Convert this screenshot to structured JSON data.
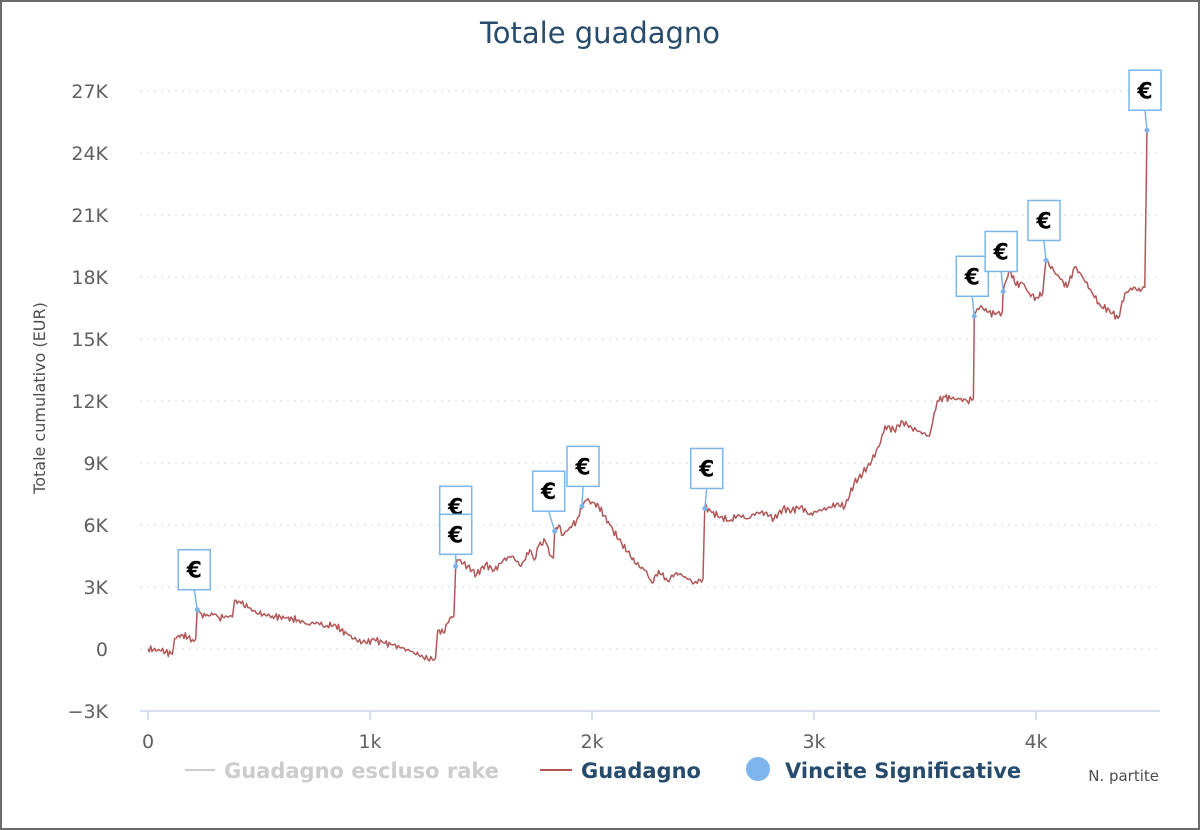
{
  "chart_data": {
    "type": "line",
    "title": "Totale guadagno",
    "ylabel": "Totale cumulativo (EUR)",
    "xlabel": "N. partite",
    "xlim": [
      -50,
      4550
    ],
    "ylim": [
      -3000,
      27000
    ],
    "yticks": [
      -3000,
      0,
      3000,
      6000,
      9000,
      12000,
      15000,
      18000,
      21000,
      24000,
      27000
    ],
    "ytick_labels": [
      "−3K",
      "0",
      "3K",
      "6K",
      "9K",
      "12K",
      "15K",
      "18K",
      "21K",
      "24K",
      "27K"
    ],
    "xticks": [
      0,
      1000,
      2000,
      3000,
      4000
    ],
    "xtick_labels": [
      "0",
      "1k",
      "2k",
      "3k",
      "4k"
    ],
    "grid": "horizontal dotted",
    "legend_position": "bottom",
    "colors": {
      "guadagno": "#b25757",
      "escluso_rake": "#cccccc",
      "vincite": "#7cb5ec",
      "title": "#274b6d"
    },
    "series": [
      {
        "name": "Guadagno escluso rake",
        "hidden": true,
        "points": []
      },
      {
        "name": "Guadagno",
        "points": [
          [
            0,
            0
          ],
          [
            60,
            -80
          ],
          [
            110,
            -250
          ],
          [
            120,
            500
          ],
          [
            150,
            700
          ],
          [
            180,
            550
          ],
          [
            200,
            450
          ],
          [
            215,
            500
          ],
          [
            222,
            2000
          ],
          [
            240,
            1700
          ],
          [
            260,
            1600
          ],
          [
            300,
            1700
          ],
          [
            320,
            1500
          ],
          [
            350,
            1600
          ],
          [
            380,
            1550
          ],
          [
            390,
            2350
          ],
          [
            420,
            2200
          ],
          [
            450,
            2000
          ],
          [
            500,
            1700
          ],
          [
            560,
            1600
          ],
          [
            620,
            1500
          ],
          [
            680,
            1400
          ],
          [
            720,
            1200
          ],
          [
            760,
            1300
          ],
          [
            800,
            1100
          ],
          [
            840,
            1200
          ],
          [
            870,
            900
          ],
          [
            900,
            700
          ],
          [
            940,
            400
          ],
          [
            980,
            300
          ],
          [
            1020,
            450
          ],
          [
            1060,
            300
          ],
          [
            1100,
            200
          ],
          [
            1140,
            50
          ],
          [
            1180,
            -100
          ],
          [
            1220,
            -300
          ],
          [
            1260,
            -500
          ],
          [
            1295,
            -450
          ],
          [
            1305,
            900
          ],
          [
            1330,
            800
          ],
          [
            1360,
            1500
          ],
          [
            1378,
            1600
          ],
          [
            1386,
            4000
          ],
          [
            1400,
            4300
          ],
          [
            1440,
            4000
          ],
          [
            1480,
            3600
          ],
          [
            1520,
            4100
          ],
          [
            1560,
            3800
          ],
          [
            1600,
            4300
          ],
          [
            1640,
            4500
          ],
          [
            1680,
            4000
          ],
          [
            1720,
            4800
          ],
          [
            1740,
            4300
          ],
          [
            1760,
            5000
          ],
          [
            1790,
            5200
          ],
          [
            1815,
            4500
          ],
          [
            1826,
            4400
          ],
          [
            1832,
            5700
          ],
          [
            1850,
            6000
          ],
          [
            1870,
            5500
          ],
          [
            1900,
            5900
          ],
          [
            1930,
            6200
          ],
          [
            1960,
            7000
          ],
          [
            1975,
            7200
          ],
          [
            2000,
            7100
          ],
          [
            2030,
            6900
          ],
          [
            2080,
            6000
          ],
          [
            2120,
            5300
          ],
          [
            2160,
            4700
          ],
          [
            2200,
            4100
          ],
          [
            2240,
            3800
          ],
          [
            2270,
            3200
          ],
          [
            2300,
            3800
          ],
          [
            2340,
            3300
          ],
          [
            2380,
            3700
          ],
          [
            2420,
            3500
          ],
          [
            2460,
            3200
          ],
          [
            2500,
            3400
          ],
          [
            2508,
            6900
          ],
          [
            2540,
            6600
          ],
          [
            2580,
            6400
          ],
          [
            2620,
            6200
          ],
          [
            2660,
            6500
          ],
          [
            2700,
            6300
          ],
          [
            2740,
            6600
          ],
          [
            2780,
            6600
          ],
          [
            2820,
            6300
          ],
          [
            2860,
            6800
          ],
          [
            2900,
            6700
          ],
          [
            2940,
            6900
          ],
          [
            2980,
            6500
          ],
          [
            3020,
            6700
          ],
          [
            3060,
            6800
          ],
          [
            3100,
            7000
          ],
          [
            3140,
            6900
          ],
          [
            3180,
            8000
          ],
          [
            3220,
            8500
          ],
          [
            3260,
            9100
          ],
          [
            3300,
            10000
          ],
          [
            3320,
            10800
          ],
          [
            3360,
            10600
          ],
          [
            3400,
            11000
          ],
          [
            3440,
            10700
          ],
          [
            3480,
            10500
          ],
          [
            3520,
            10300
          ],
          [
            3555,
            12000
          ],
          [
            3590,
            12200
          ],
          [
            3620,
            12100
          ],
          [
            3655,
            12100
          ],
          [
            3690,
            12000
          ],
          [
            3718,
            12100
          ],
          [
            3722,
            16200
          ],
          [
            3750,
            16600
          ],
          [
            3780,
            16300
          ],
          [
            3820,
            16200
          ],
          [
            3848,
            16300
          ],
          [
            3852,
            17300
          ],
          [
            3880,
            18400
          ],
          [
            3910,
            17600
          ],
          [
            3940,
            17700
          ],
          [
            3970,
            17200
          ],
          [
            4000,
            17000
          ],
          [
            4030,
            17200
          ],
          [
            4045,
            18800
          ],
          [
            4080,
            18300
          ],
          [
            4110,
            17900
          ],
          [
            4140,
            17500
          ],
          [
            4175,
            18500
          ],
          [
            4210,
            18000
          ],
          [
            4250,
            17300
          ],
          [
            4290,
            16600
          ],
          [
            4330,
            16400
          ],
          [
            4370,
            16000
          ],
          [
            4400,
            17200
          ],
          [
            4440,
            17500
          ],
          [
            4470,
            17300
          ],
          [
            4490,
            17500
          ],
          [
            4500,
            25100
          ]
        ]
      },
      {
        "name": "Vincite Significative",
        "flag_symbol": "€",
        "points": [
          [
            222,
            1900
          ],
          [
            1386,
            4000
          ],
          [
            1386,
            4000
          ],
          [
            1832,
            5700
          ],
          [
            1955,
            6900
          ],
          [
            2508,
            6800
          ],
          [
            3722,
            16100
          ],
          [
            3852,
            17300
          ],
          [
            4045,
            18800
          ],
          [
            4500,
            25100
          ]
        ]
      }
    ]
  }
}
